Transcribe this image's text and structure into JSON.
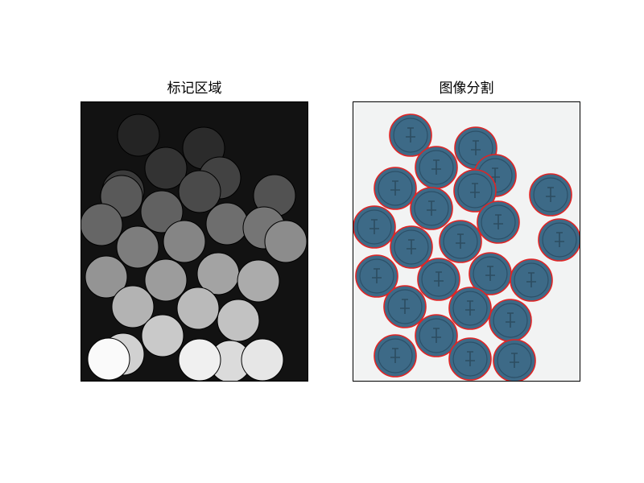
{
  "panels": {
    "left": {
      "title": "标记区域",
      "background": "#121212",
      "region_outline": "#000000"
    },
    "right": {
      "title": "图像分割",
      "background": "#f2f3f3",
      "coin_color": "#3d6a87",
      "coin_edge": "#2c5068",
      "boundary_color": "#e02424"
    }
  },
  "regions": [
    {
      "id": 1,
      "gray": 0.14
    },
    {
      "id": 2,
      "gray": 0.17
    },
    {
      "id": 3,
      "gray": 0.2
    },
    {
      "id": 4,
      "gray": 0.23
    },
    {
      "id": 5,
      "gray": 0.26
    },
    {
      "id": 6,
      "gray": 0.29
    },
    {
      "id": 7,
      "gray": 0.32
    },
    {
      "id": 8,
      "gray": 0.35
    },
    {
      "id": 9,
      "gray": 0.38
    },
    {
      "id": 10,
      "gray": 0.4
    },
    {
      "id": 11,
      "gray": 0.43
    },
    {
      "id": 12,
      "gray": 0.46
    },
    {
      "id": 13,
      "gray": 0.49
    },
    {
      "id": 14,
      "gray": 0.52
    },
    {
      "id": 15,
      "gray": 0.55
    },
    {
      "id": 16,
      "gray": 0.58
    },
    {
      "id": 17,
      "gray": 0.61
    },
    {
      "id": 18,
      "gray": 0.64
    },
    {
      "id": 19,
      "gray": 0.67
    },
    {
      "id": 20,
      "gray": 0.7
    },
    {
      "id": 21,
      "gray": 0.73
    },
    {
      "id": 22,
      "gray": 0.76
    },
    {
      "id": 23,
      "gray": 0.79
    },
    {
      "id": 24,
      "gray": 0.82
    },
    {
      "id": 25,
      "gray": 0.86
    },
    {
      "id": 26,
      "gray": 0.9
    },
    {
      "id": 27,
      "gray": 0.94
    },
    {
      "id": 28,
      "gray": 0.98
    }
  ]
}
